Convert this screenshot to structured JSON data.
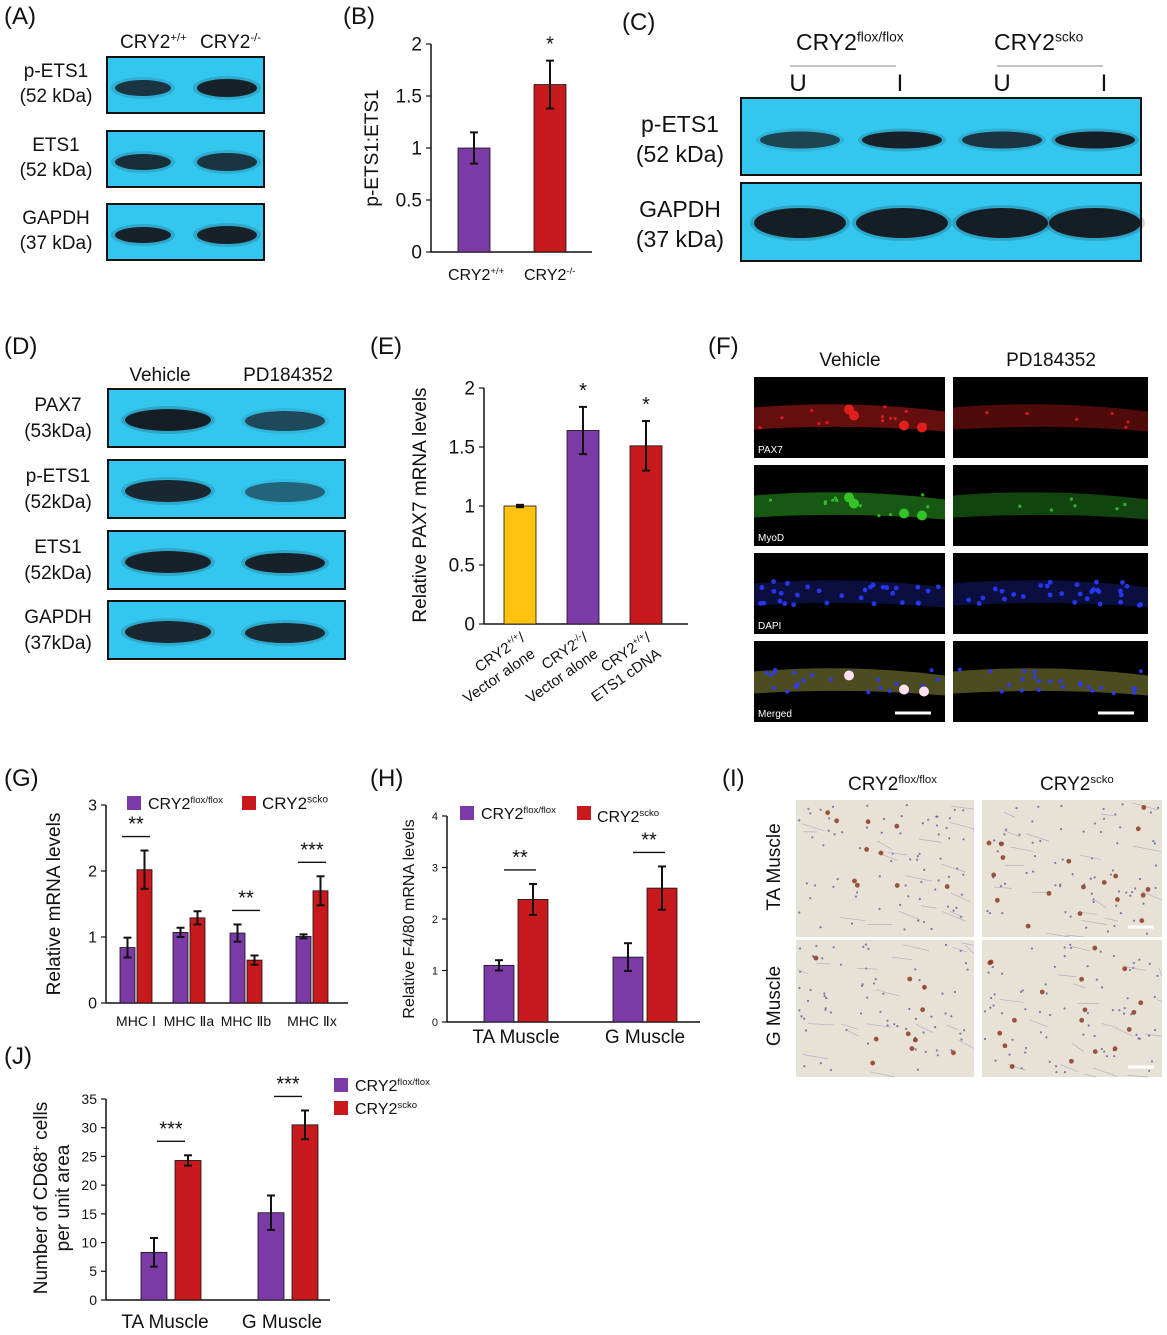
{
  "colors": {
    "purple": "#7b3aa6",
    "red": "#c8191d",
    "yellow": "#ffc20e",
    "blot_bg": "#33c7f0",
    "band": "#15161c",
    "micro_red": "#e0201e",
    "micro_green": "#34c42a",
    "micro_blue": "#2a3bff",
    "ihc_bg": "#e8e2d6"
  },
  "panels": {
    "A": {
      "letter": "(A)",
      "lanes": [
        "CRY2",
        "CRY2"
      ],
      "lane_sup": [
        "+/+",
        "-/-"
      ],
      "rows": [
        {
          "name": "p-ETS1",
          "size": "(52 kDa)",
          "intensity": [
            0.75,
            0.95
          ]
        },
        {
          "name": "ETS1",
          "size": "(52 kDa)",
          "intensity": [
            0.8,
            0.75
          ]
        },
        {
          "name": "GAPDH",
          "size": "(37 kDa)",
          "intensity": [
            0.95,
            0.95
          ]
        }
      ]
    },
    "B": {
      "letter": "(B)"
    },
    "C": {
      "letter": "(C)",
      "groups": [
        "CRY2",
        "CRY2"
      ],
      "group_sup": [
        "flox/flox",
        "scko"
      ],
      "lanes": [
        "U",
        "I",
        "U",
        "I"
      ],
      "rows": [
        {
          "name": "p-ETS1",
          "size": "(52 kDa)",
          "intensity": [
            0.6,
            0.95,
            0.75,
            1.0
          ]
        },
        {
          "name": "GAPDH",
          "size": "(37 kDa)",
          "intensity": [
            1.0,
            1.0,
            1.0,
            1.0
          ]
        }
      ]
    },
    "D": {
      "letter": "(D)",
      "lanes": [
        "Vehicle",
        "PD184352"
      ],
      "rows": [
        {
          "name": "PAX7",
          "size": "(53kDa)",
          "intensity": [
            1.0,
            0.55
          ]
        },
        {
          "name": "p-ETS1",
          "size": "(52kDa)",
          "intensity": [
            0.9,
            0.3
          ]
        },
        {
          "name": "ETS1",
          "size": "(52kDa)",
          "intensity": [
            0.95,
            0.95
          ]
        },
        {
          "name": "GAPDH",
          "size": "(37kDa)",
          "intensity": [
            0.9,
            0.85
          ]
        }
      ]
    },
    "E": {
      "letter": "(E)"
    },
    "F": {
      "letter": "(F)",
      "columns": [
        "Vehicle",
        "PD184352"
      ],
      "rows": [
        "PAX7",
        "MyoD",
        "DAPI",
        "Merged"
      ]
    },
    "G": {
      "letter": "(G)"
    },
    "H": {
      "letter": "(H)"
    },
    "I": {
      "letter": "(I)",
      "columns": [
        "CRY2",
        "CRY2"
      ],
      "column_sup": [
        "flox/flox",
        "scko"
      ],
      "rows": [
        "TA Muscle",
        "G Muscle"
      ]
    },
    "J": {
      "letter": "(J)"
    }
  },
  "chart_data": [
    {
      "id": "B",
      "type": "bar",
      "categories": [
        "CRY2",
        "CRY2"
      ],
      "category_sup": [
        "+/+",
        "-/-"
      ],
      "values": [
        1.0,
        1.61
      ],
      "errors": [
        0.15,
        0.23
      ],
      "colors": [
        "#7b3aa6",
        "#c8191d"
      ],
      "significance": [
        "",
        "*"
      ],
      "ylabel": "p-ETS1:ETS1",
      "ylim": [
        0,
        2
      ],
      "yticks": [
        "0",
        "0.5",
        "1",
        "1.5",
        "2"
      ]
    },
    {
      "id": "E",
      "type": "bar",
      "categories": [
        "CRY2",
        "CRY2",
        "CRY2"
      ],
      "category_sup": [
        "+/+",
        "-/-",
        "+/+"
      ],
      "category_line1_suffix": [
        "/",
        "/",
        "/"
      ],
      "category_line2": [
        "Vector alone",
        "Vector alone",
        "ETS1 cDNA"
      ],
      "values": [
        1.0,
        1.64,
        1.51
      ],
      "errors": [
        0.01,
        0.2,
        0.21
      ],
      "colors": [
        "#ffc20e",
        "#7b3aa6",
        "#c8191d"
      ],
      "significance": [
        "",
        "*",
        "*"
      ],
      "ylabel": "Relative PAX7 mRNA levels",
      "ylim": [
        0,
        2
      ],
      "yticks": [
        "0",
        "0.5",
        "1",
        "1.5",
        "2"
      ]
    },
    {
      "id": "G",
      "type": "bar",
      "categories": [
        "MHC Ⅰ",
        "MHC Ⅱa",
        "MHC Ⅱb",
        "MHC Ⅱx"
      ],
      "series": [
        {
          "name": "CRY2",
          "sup": "flox/flox",
          "values": [
            0.84,
            1.07,
            1.06,
            1.01
          ],
          "errors": [
            0.15,
            0.07,
            0.13,
            0.03
          ],
          "color": "#7b3aa6"
        },
        {
          "name": "CRY2",
          "sup": "scko",
          "values": [
            2.02,
            1.29,
            0.65,
            1.7
          ],
          "errors": [
            0.29,
            0.1,
            0.07,
            0.22
          ],
          "color": "#c8191d"
        }
      ],
      "significance": [
        "**",
        "",
        "**",
        "***"
      ],
      "ylabel": "Relative mRNA levels",
      "ylim": [
        0,
        3
      ],
      "yticks": [
        "0",
        "1",
        "2",
        "3"
      ],
      "legend": "top"
    },
    {
      "id": "H",
      "type": "bar",
      "categories": [
        "TA Muscle",
        "G Muscle"
      ],
      "series": [
        {
          "name": "CRY2",
          "sup": "flox/flox",
          "values": [
            1.1,
            1.26
          ],
          "errors": [
            0.1,
            0.27
          ],
          "color": "#7b3aa6"
        },
        {
          "name": "CRY2",
          "sup": "scko",
          "values": [
            2.38,
            2.6
          ],
          "errors": [
            0.3,
            0.42
          ],
          "color": "#c8191d"
        }
      ],
      "significance": [
        "**",
        "**"
      ],
      "ylabel": "Relative F4/80 mRNA levels",
      "ylim": [
        0,
        4
      ],
      "yticks": [
        "0",
        "1",
        "2",
        "3",
        "4"
      ],
      "legend": "top"
    },
    {
      "id": "J",
      "type": "bar",
      "categories": [
        "TA Muscle",
        "G Muscle"
      ],
      "series": [
        {
          "name": "CRY2",
          "sup": "flox/flox",
          "values": [
            8.3,
            15.2
          ],
          "errors": [
            2.5,
            3.0
          ],
          "color": "#7b3aa6"
        },
        {
          "name": "CRY2",
          "sup": "scko",
          "values": [
            24.3,
            30.5
          ],
          "errors": [
            0.9,
            2.5
          ],
          "color": "#c8191d"
        }
      ],
      "significance": [
        "***",
        "***"
      ],
      "ylabel_line1": "Number of  CD68",
      "ylabel_sup": "+",
      "ylabel_line1_suffix": " cells",
      "ylabel_line2": "per unit area",
      "ylim": [
        0,
        35
      ],
      "yticks": [
        "0",
        "5",
        "10",
        "15",
        "20",
        "25",
        "30",
        "35"
      ],
      "legend": "right"
    }
  ]
}
